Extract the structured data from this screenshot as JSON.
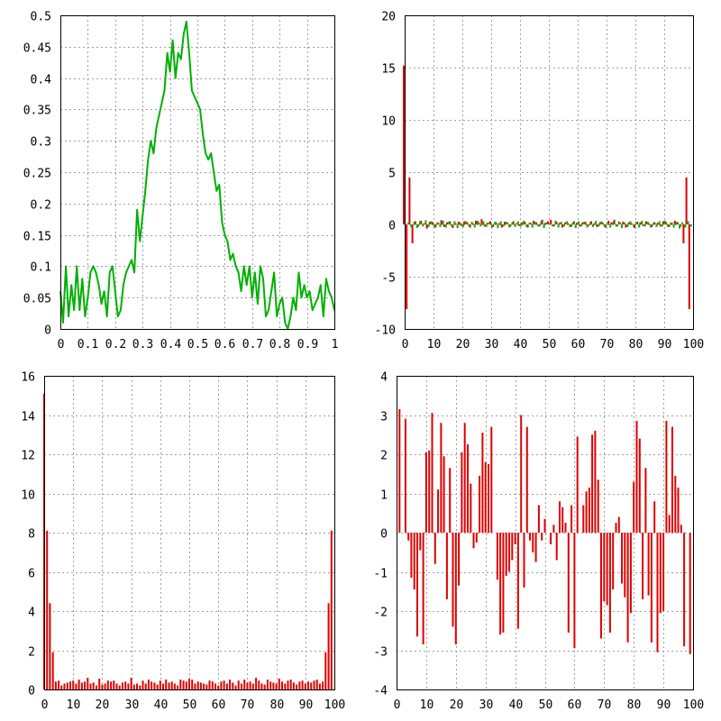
{
  "colors": {
    "line": "#00b000",
    "bar_real": "#e00000",
    "bar_imag": "#00b000"
  },
  "chart_data": [
    {
      "type": "line",
      "xlim": [
        0,
        1
      ],
      "ylim": [
        0,
        0.5
      ],
      "xticks": [
        "0",
        "0.1",
        "0.2",
        "0.3",
        "0.4",
        "0.5",
        "0.6",
        "0.7",
        "0.8",
        "0.9",
        "1"
      ],
      "yticks": [
        "0",
        "0.05",
        "0.1",
        "0.15",
        "0.2",
        "0.25",
        "0.3",
        "0.35",
        "0.4",
        "0.45",
        "0.5"
      ],
      "grid": true,
      "x": [
        0.0,
        0.01,
        0.02,
        0.03,
        0.04,
        0.05,
        0.06,
        0.07,
        0.08,
        0.09,
        0.1,
        0.11,
        0.12,
        0.13,
        0.14,
        0.15,
        0.16,
        0.17,
        0.18,
        0.19,
        0.2,
        0.21,
        0.22,
        0.23,
        0.24,
        0.25,
        0.26,
        0.27,
        0.28,
        0.29,
        0.3,
        0.31,
        0.32,
        0.33,
        0.34,
        0.35,
        0.36,
        0.37,
        0.38,
        0.39,
        0.4,
        0.41,
        0.42,
        0.43,
        0.44,
        0.45,
        0.46,
        0.47,
        0.48,
        0.49,
        0.5,
        0.51,
        0.52,
        0.53,
        0.54,
        0.55,
        0.56,
        0.57,
        0.58,
        0.59,
        0.6,
        0.61,
        0.62,
        0.63,
        0.64,
        0.65,
        0.66,
        0.67,
        0.68,
        0.69,
        0.7,
        0.71,
        0.72,
        0.73,
        0.74,
        0.75,
        0.76,
        0.77,
        0.78,
        0.79,
        0.8,
        0.81,
        0.82,
        0.83,
        0.84,
        0.85,
        0.86,
        0.87,
        0.88,
        0.89,
        0.9,
        0.91,
        0.92,
        0.93,
        0.94,
        0.95,
        0.96,
        0.97,
        0.98,
        0.99,
        1.0
      ],
      "y": [
        0.06,
        0.01,
        0.1,
        0.02,
        0.07,
        0.03,
        0.1,
        0.03,
        0.08,
        0.02,
        0.05,
        0.09,
        0.1,
        0.09,
        0.07,
        0.04,
        0.06,
        0.02,
        0.09,
        0.1,
        0.06,
        0.02,
        0.03,
        0.07,
        0.09,
        0.1,
        0.11,
        0.09,
        0.19,
        0.14,
        0.18,
        0.22,
        0.27,
        0.3,
        0.28,
        0.32,
        0.34,
        0.36,
        0.38,
        0.44,
        0.41,
        0.46,
        0.4,
        0.44,
        0.43,
        0.47,
        0.49,
        0.44,
        0.38,
        0.37,
        0.36,
        0.35,
        0.31,
        0.28,
        0.27,
        0.28,
        0.25,
        0.22,
        0.23,
        0.17,
        0.15,
        0.14,
        0.11,
        0.12,
        0.1,
        0.09,
        0.06,
        0.1,
        0.07,
        0.1,
        0.05,
        0.09,
        0.04,
        0.1,
        0.08,
        0.02,
        0.03,
        0.06,
        0.09,
        0.02,
        0.04,
        0.05,
        0.01,
        0.0,
        0.02,
        0.05,
        0.03,
        0.09,
        0.05,
        0.07,
        0.05,
        0.06,
        0.03,
        0.04,
        0.05,
        0.07,
        0.02,
        0.08,
        0.06,
        0.05,
        0.03
      ]
    },
    {
      "type": "bar",
      "xlim": [
        0,
        100
      ],
      "ylim": [
        -10,
        20
      ],
      "xticks": [
        "0",
        "10",
        "20",
        "30",
        "40",
        "50",
        "60",
        "70",
        "80",
        "90",
        "100"
      ],
      "yticks": [
        "-10",
        "-5",
        "0",
        "5",
        "10",
        "15",
        "20"
      ],
      "grid": true,
      "series": [
        {
          "values": [
            15.2,
            -8.1,
            4.5,
            -1.8,
            0.3,
            -0.2,
            0.35,
            0.1,
            -0.4,
            0.25,
            0.2,
            -0.3,
            0.15,
            0.4,
            -0.25,
            0.2,
            0.3,
            -0.35,
            0.1,
            0.25,
            -0.15,
            0.3,
            0.2,
            -0.3,
            0.1,
            0.35,
            0.2,
            0.5,
            -0.2,
            0.15,
            0.3,
            -0.25,
            0.2,
            0.1,
            -0.3,
            0.25,
            0.15,
            -0.2,
            0.3,
            0.1,
            -0.15,
            0.2,
            0.25,
            -0.3,
            0.15,
            0.35,
            0.2,
            -0.2,
            0.45,
            0.15,
            0.3,
            0.45,
            -0.2,
            0.25,
            0.15,
            -0.3,
            0.2,
            0.1,
            -0.25,
            0.3,
            0.15,
            -0.2,
            0.2,
            0.25,
            -0.15,
            0.3,
            0.1,
            -0.25,
            0.2,
            0.15,
            -0.3,
            0.35,
            0.2,
            0.45,
            -0.2,
            0.15,
            0.25,
            -0.3,
            0.2,
            0.1,
            -0.35,
            0.25,
            0.2,
            -0.15,
            0.3,
            0.1,
            -0.25,
            0.2,
            0.15,
            -0.2,
            0.3,
            0.2,
            -0.25,
            0.15,
            0.35,
            0.2,
            -0.2,
            -1.8,
            4.5,
            -8.1
          ]
        },
        {
          "values": [
            0.0,
            0.2,
            -0.3,
            0.25,
            -0.35,
            0.3,
            -0.2,
            0.4,
            -0.25,
            0.3,
            -0.3,
            0.2,
            -0.25,
            0.35,
            -0.3,
            0.25,
            -0.2,
            0.3,
            -0.35,
            0.2,
            -0.25,
            0.3,
            -0.2,
            0.25,
            -0.3,
            0.35,
            -0.2,
            0.3,
            -0.25,
            0.2,
            -0.3,
            0.25,
            -0.35,
            0.3,
            -0.2,
            0.25,
            -0.3,
            0.2,
            -0.25,
            0.3,
            -0.2,
            0.35,
            -0.25,
            0.2,
            -0.3,
            0.25,
            -0.2,
            0.3,
            -0.35,
            0.2,
            0.0,
            -0.2,
            0.35,
            -0.3,
            0.25,
            -0.2,
            0.3,
            -0.25,
            0.2,
            -0.35,
            0.3,
            -0.2,
            0.25,
            -0.3,
            0.2,
            -0.25,
            0.35,
            -0.2,
            0.3,
            -0.25,
            0.2,
            -0.3,
            0.25,
            -0.2,
            0.3,
            -0.35,
            0.2,
            -0.25,
            0.3,
            -0.2,
            0.25,
            -0.3,
            0.35,
            -0.2,
            0.25,
            -0.3,
            0.2,
            -0.25,
            0.3,
            -0.2,
            0.35,
            -0.25,
            0.2,
            -0.3,
            0.25,
            -0.4,
            0.2,
            -0.3,
            0.3,
            -0.2
          ]
        }
      ]
    },
    {
      "type": "bar",
      "xlim": [
        0,
        100
      ],
      "ylim": [
        0,
        16
      ],
      "xticks": [
        "0",
        "10",
        "20",
        "30",
        "40",
        "50",
        "60",
        "70",
        "80",
        "90",
        "100"
      ],
      "yticks": [
        "0",
        "2",
        "4",
        "6",
        "8",
        "10",
        "12",
        "14",
        "16"
      ],
      "grid": true,
      "values": [
        15.1,
        8.1,
        4.4,
        1.9,
        0.4,
        0.45,
        0.2,
        0.3,
        0.35,
        0.4,
        0.45,
        0.3,
        0.5,
        0.35,
        0.4,
        0.6,
        0.3,
        0.35,
        0.2,
        0.55,
        0.25,
        0.3,
        0.45,
        0.4,
        0.45,
        0.3,
        0.2,
        0.35,
        0.4,
        0.3,
        0.6,
        0.25,
        0.3,
        0.2,
        0.45,
        0.3,
        0.5,
        0.4,
        0.35,
        0.25,
        0.45,
        0.3,
        0.5,
        0.35,
        0.4,
        0.3,
        0.2,
        0.5,
        0.45,
        0.4,
        0.55,
        0.5,
        0.3,
        0.4,
        0.35,
        0.3,
        0.25,
        0.45,
        0.4,
        0.3,
        0.2,
        0.4,
        0.45,
        0.3,
        0.5,
        0.35,
        0.2,
        0.45,
        0.3,
        0.5,
        0.35,
        0.4,
        0.3,
        0.6,
        0.45,
        0.3,
        0.25,
        0.5,
        0.4,
        0.35,
        0.3,
        0.55,
        0.4,
        0.3,
        0.45,
        0.5,
        0.35,
        0.25,
        0.4,
        0.45,
        0.3,
        0.4,
        0.35,
        0.45,
        0.5,
        0.3,
        0.4,
        1.9,
        4.4,
        8.1,
        0.0
      ]
    },
    {
      "type": "bar",
      "xlim": [
        0,
        100
      ],
      "ylim": [
        -4,
        4
      ],
      "xticks": [
        "0",
        "10",
        "20",
        "30",
        "40",
        "50",
        "60",
        "70",
        "80",
        "90",
        "100"
      ],
      "yticks": [
        "-4",
        "-3",
        "-2",
        "-1",
        "0",
        "1",
        "2",
        "3",
        "4"
      ],
      "grid": true,
      "values": [
        0.0,
        3.15,
        0.0,
        2.9,
        -0.2,
        -1.15,
        -1.45,
        -2.65,
        -0.45,
        -2.85,
        2.05,
        2.1,
        3.05,
        -0.8,
        1.1,
        2.8,
        1.95,
        -1.7,
        1.65,
        -2.4,
        -2.85,
        -1.35,
        2.05,
        2.8,
        2.25,
        1.25,
        -0.4,
        -0.25,
        1.45,
        2.55,
        1.8,
        1.75,
        2.7,
        0.0,
        -1.2,
        -2.6,
        -2.55,
        -1.1,
        -1.0,
        -0.7,
        -0.3,
        -2.45,
        3.0,
        -1.4,
        2.7,
        -0.2,
        -0.5,
        -0.75,
        0.7,
        -0.2,
        0.35,
        0.0,
        -0.3,
        0.2,
        -0.7,
        0.8,
        0.65,
        0.25,
        -2.55,
        0.7,
        -2.95,
        2.45,
        0.0,
        0.7,
        1.05,
        1.15,
        2.5,
        2.6,
        1.35,
        -2.7,
        -1.75,
        -1.85,
        -2.55,
        -1.45,
        0.25,
        0.4,
        -1.3,
        -1.65,
        -2.8,
        -2.05,
        1.3,
        2.85,
        2.4,
        -1.7,
        1.65,
        -1.6,
        -2.8,
        0.8,
        -3.05,
        -2.05,
        -2.0,
        2.85,
        0.45,
        2.7,
        1.45,
        1.15,
        0.2,
        -2.9,
        0.0,
        -3.1,
        0.0
      ]
    }
  ]
}
